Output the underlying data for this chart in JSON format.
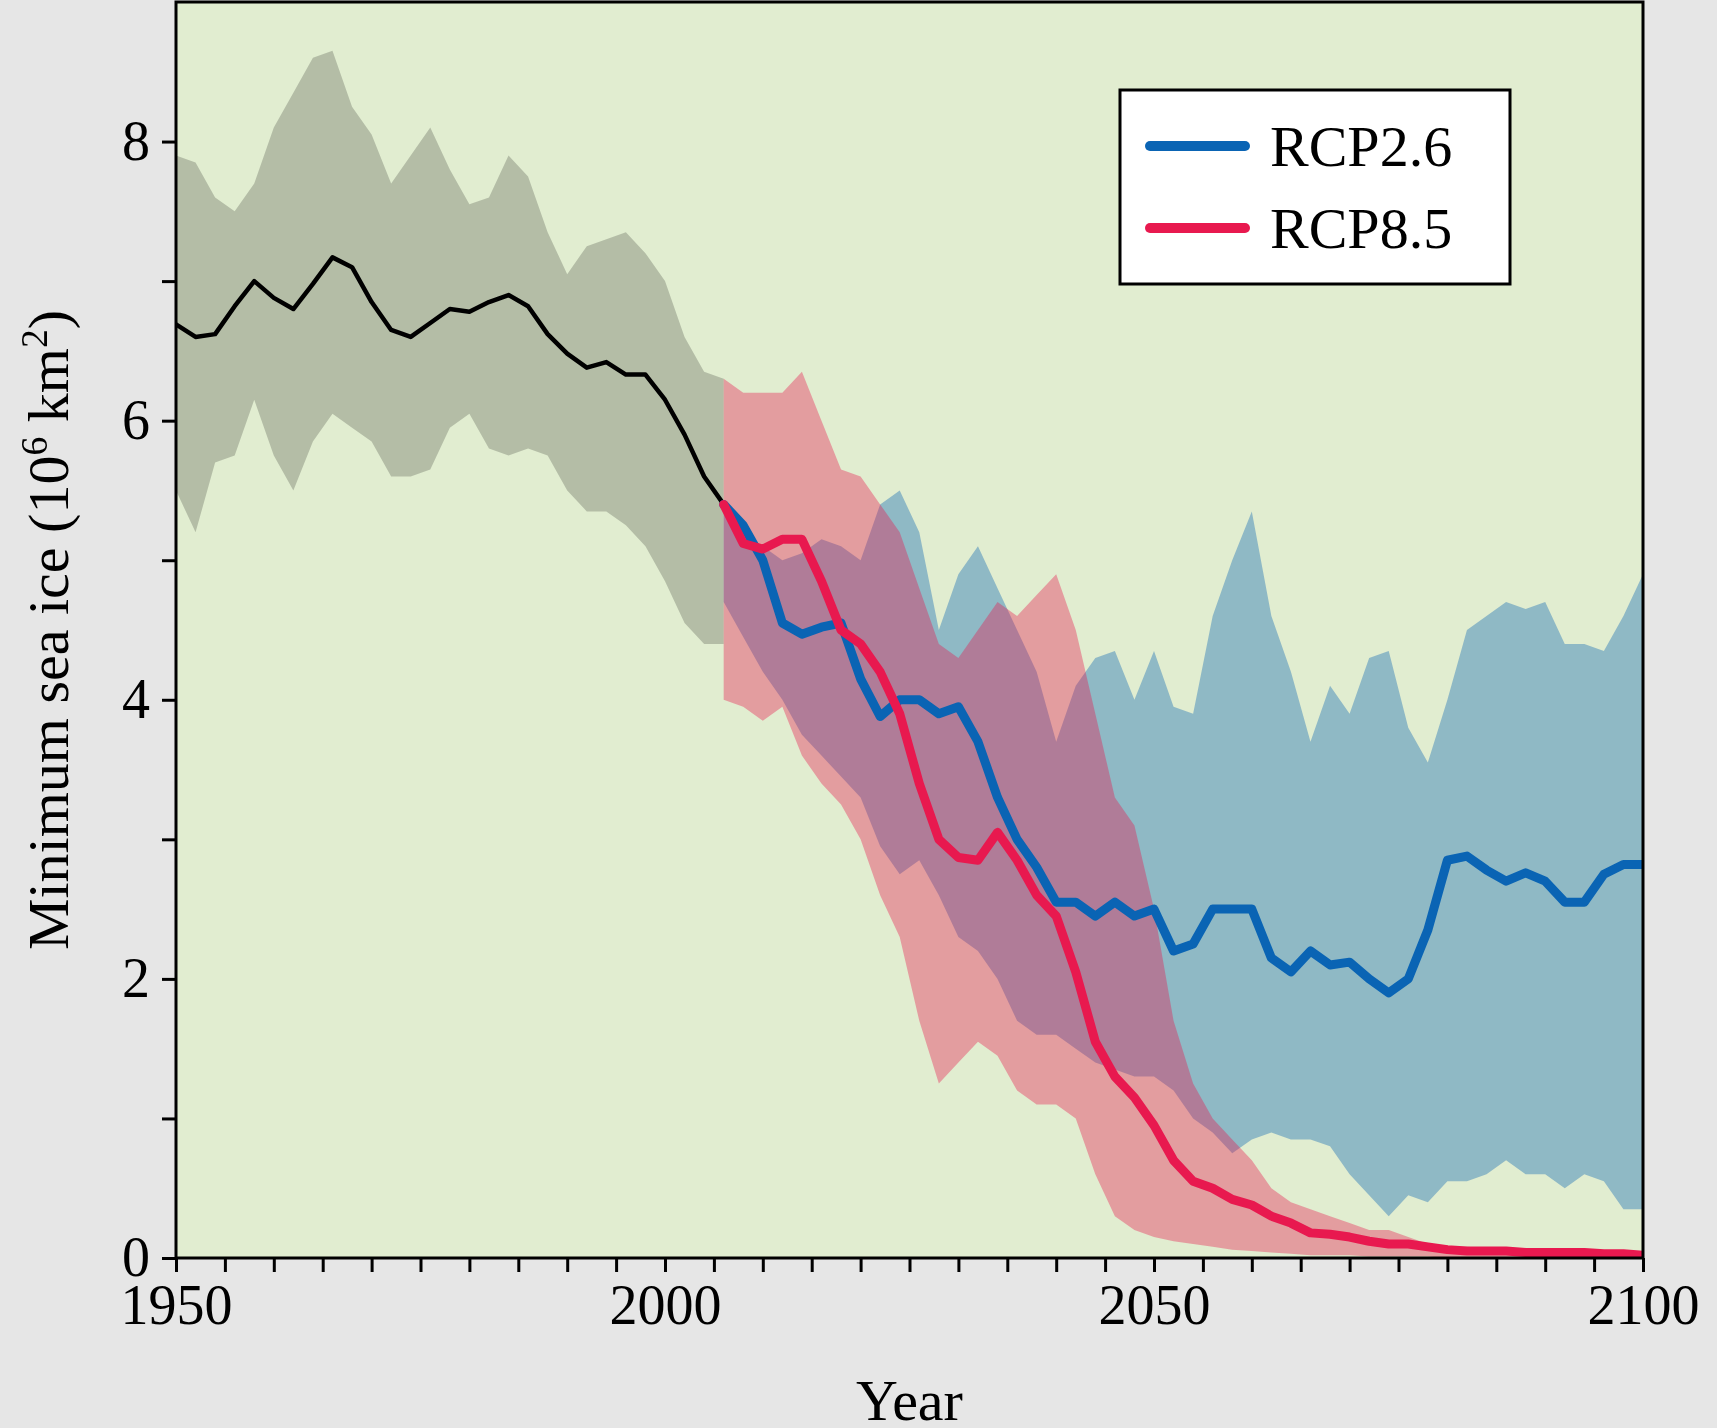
{
  "chart_data": {
    "type": "line",
    "xlabel": "Year",
    "ylabel": "Minimum sea ice (10$^{6}$ km$^{2}$)",
    "xlim": [
      1950,
      2100
    ],
    "ylim": [
      0,
      9
    ],
    "xticks": [
      1950,
      {
        "value": 1955,
        "label": null
      },
      {
        "value": 1960,
        "label": null
      },
      {
        "value": 1965,
        "label": null
      },
      {
        "value": 1970,
        "label": null
      },
      {
        "value": 1975,
        "label": null
      },
      {
        "value": 1980,
        "label": null
      },
      {
        "value": 1985,
        "label": null
      },
      {
        "value": 1990,
        "label": null
      },
      {
        "value": 1995,
        "label": null
      },
      2000,
      {
        "value": 2005,
        "label": null
      },
      {
        "value": 2010,
        "label": null
      },
      {
        "value": 2015,
        "label": null
      },
      {
        "value": 2020,
        "label": null
      },
      {
        "value": 2025,
        "label": null
      },
      {
        "value": 2030,
        "label": null
      },
      {
        "value": 2035,
        "label": null
      },
      {
        "value": 2040,
        "label": null
      },
      {
        "value": 2045,
        "label": null
      },
      2050,
      {
        "value": 2055,
        "label": null
      },
      {
        "value": 2060,
        "label": null
      },
      {
        "value": 2065,
        "label": null
      },
      {
        "value": 2070,
        "label": null
      },
      {
        "value": 2075,
        "label": null
      },
      {
        "value": 2080,
        "label": null
      },
      {
        "value": 2085,
        "label": null
      },
      {
        "value": 2090,
        "label": null
      },
      {
        "value": 2095,
        "label": null
      },
      2100
    ],
    "yticks": [
      0,
      {
        "value": 1,
        "label": null
      },
      2,
      {
        "value": 3,
        "label": null
      },
      4,
      {
        "value": 5,
        "label": null
      },
      6,
      {
        "value": 7,
        "label": null
      },
      8
    ],
    "legend": "top right",
    "series": [
      {
        "color": "#000000",
        "x": [
          1950,
          1952,
          1954,
          1956,
          1958,
          1960,
          1962,
          1964,
          1966,
          1968,
          1970,
          1972,
          1974,
          1976,
          1978,
          1980,
          1982,
          1984,
          1986,
          1988,
          1990,
          1992,
          1994,
          1996,
          1998,
          2000,
          2002,
          2004,
          2006
        ],
        "values": [
          6.69,
          6.6,
          6.62,
          6.82,
          7.0,
          6.88,
          6.8,
          6.98,
          7.17,
          7.1,
          6.85,
          6.65,
          6.6,
          6.7,
          6.8,
          6.78,
          6.85,
          6.9,
          6.82,
          6.62,
          6.48,
          6.38,
          6.42,
          6.33,
          6.33,
          6.15,
          5.9,
          5.6,
          5.4
        ],
        "upper": [
          7.9,
          7.85,
          7.6,
          7.5,
          7.7,
          8.1,
          8.35,
          8.6,
          8.65,
          8.25,
          8.05,
          7.7,
          7.9,
          8.1,
          7.8,
          7.55,
          7.6,
          7.9,
          7.75,
          7.35,
          7.05,
          7.25,
          7.3,
          7.35,
          7.2,
          7.0,
          6.6,
          6.35,
          6.3
        ],
        "lower": [
          5.5,
          5.2,
          5.7,
          5.75,
          6.15,
          5.75,
          5.5,
          5.85,
          6.05,
          5.95,
          5.85,
          5.6,
          5.6,
          5.65,
          5.95,
          6.05,
          5.8,
          5.75,
          5.8,
          5.75,
          5.5,
          5.35,
          5.35,
          5.25,
          5.1,
          4.85,
          4.55,
          4.4,
          4.4
        ]
      },
      {
        "name": "RCP2.6",
        "color": "#0a64b4",
        "x": [
          2006,
          2008,
          2010,
          2012,
          2014,
          2016,
          2018,
          2020,
          2022,
          2024,
          2026,
          2028,
          2030,
          2032,
          2034,
          2036,
          2038,
          2040,
          2042,
          2044,
          2046,
          2048,
          2050,
          2052,
          2054,
          2056,
          2058,
          2060,
          2062,
          2064,
          2066,
          2068,
          2070,
          2072,
          2074,
          2076,
          2078,
          2080,
          2082,
          2084,
          2086,
          2088,
          2090,
          2092,
          2094,
          2096,
          2098,
          2100
        ],
        "values": [
          5.4,
          5.25,
          5.0,
          4.55,
          4.47,
          4.52,
          4.55,
          4.15,
          3.88,
          4.0,
          4.0,
          3.9,
          3.95,
          3.7,
          3.3,
          3.0,
          2.8,
          2.55,
          2.55,
          2.45,
          2.55,
          2.45,
          2.5,
          2.2,
          2.25,
          2.5,
          2.5,
          2.5,
          2.15,
          2.05,
          2.2,
          2.1,
          2.12,
          2.0,
          1.9,
          2.0,
          2.35,
          2.85,
          2.88,
          2.78,
          2.7,
          2.76,
          2.7,
          2.55,
          2.55,
          2.75,
          2.82,
          2.82
        ],
        "upper": [
          5.4,
          5.2,
          5.1,
          5.0,
          5.05,
          5.15,
          5.1,
          5.0,
          5.4,
          5.5,
          5.2,
          4.5,
          4.9,
          5.1,
          4.8,
          4.5,
          4.2,
          3.7,
          4.1,
          4.3,
          4.35,
          4.0,
          4.35,
          3.95,
          3.9,
          4.6,
          5.0,
          5.35,
          4.6,
          4.2,
          3.7,
          4.1,
          3.9,
          4.3,
          4.35,
          3.8,
          3.55,
          4.0,
          4.5,
          4.6,
          4.7,
          4.65,
          4.7,
          4.4,
          4.4,
          4.35,
          4.6,
          4.9
        ],
        "lower": [
          4.7,
          4.45,
          4.2,
          4.0,
          3.75,
          3.6,
          3.45,
          3.3,
          2.95,
          2.75,
          2.85,
          2.6,
          2.3,
          2.2,
          2.0,
          1.7,
          1.6,
          1.6,
          1.5,
          1.4,
          1.35,
          1.3,
          1.3,
          1.2,
          1.0,
          0.9,
          0.75,
          0.85,
          0.9,
          0.85,
          0.85,
          0.8,
          0.6,
          0.45,
          0.3,
          0.45,
          0.4,
          0.55,
          0.55,
          0.6,
          0.7,
          0.6,
          0.6,
          0.5,
          0.6,
          0.55,
          0.35,
          0.35
        ]
      },
      {
        "name": "RCP8.5",
        "color": "#e8194f",
        "x": [
          2006,
          2008,
          2010,
          2012,
          2014,
          2016,
          2018,
          2020,
          2022,
          2024,
          2026,
          2028,
          2030,
          2032,
          2034,
          2036,
          2038,
          2040,
          2042,
          2044,
          2046,
          2048,
          2050,
          2052,
          2054,
          2056,
          2058,
          2060,
          2062,
          2064,
          2066,
          2068,
          2070,
          2072,
          2074,
          2076,
          2078,
          2080,
          2082,
          2084,
          2086,
          2088,
          2090,
          2092,
          2094,
          2096,
          2098,
          2100
        ],
        "values": [
          5.4,
          5.12,
          5.08,
          5.15,
          5.15,
          4.85,
          4.5,
          4.4,
          4.2,
          3.9,
          3.4,
          3.0,
          2.87,
          2.85,
          3.05,
          2.85,
          2.6,
          2.45,
          2.05,
          1.55,
          1.3,
          1.15,
          0.95,
          0.7,
          0.55,
          0.5,
          0.42,
          0.38,
          0.3,
          0.25,
          0.18,
          0.17,
          0.15,
          0.12,
          0.1,
          0.1,
          0.08,
          0.06,
          0.05,
          0.05,
          0.05,
          0.04,
          0.04,
          0.04,
          0.04,
          0.03,
          0.03,
          0.02
        ],
        "upper": [
          6.3,
          6.2,
          6.2,
          6.2,
          6.35,
          6.0,
          5.65,
          5.6,
          5.4,
          5.2,
          4.8,
          4.4,
          4.3,
          4.5,
          4.7,
          4.6,
          4.75,
          4.9,
          4.5,
          3.9,
          3.3,
          3.1,
          2.5,
          1.7,
          1.25,
          1.0,
          0.85,
          0.7,
          0.5,
          0.4,
          0.35,
          0.3,
          0.25,
          0.2,
          0.2,
          0.15,
          0.1,
          0.08,
          0.08,
          0.07,
          0.07,
          0.06,
          0.06,
          0.05,
          0.05,
          0.05,
          0.04,
          0.04
        ],
        "lower": [
          4.0,
          3.95,
          3.85,
          3.95,
          3.6,
          3.4,
          3.25,
          3.0,
          2.6,
          2.3,
          1.7,
          1.25,
          1.4,
          1.55,
          1.45,
          1.2,
          1.1,
          1.1,
          1.0,
          0.6,
          0.3,
          0.2,
          0.15,
          0.12,
          0.1,
          0.08,
          0.06,
          0.05,
          0.04,
          0.03,
          0.02,
          0.02,
          0.02,
          0.01,
          0.01,
          0.01,
          0.01,
          0,
          0,
          0,
          0,
          0,
          0,
          0,
          0,
          0,
          0,
          0
        ]
      }
    ]
  }
}
